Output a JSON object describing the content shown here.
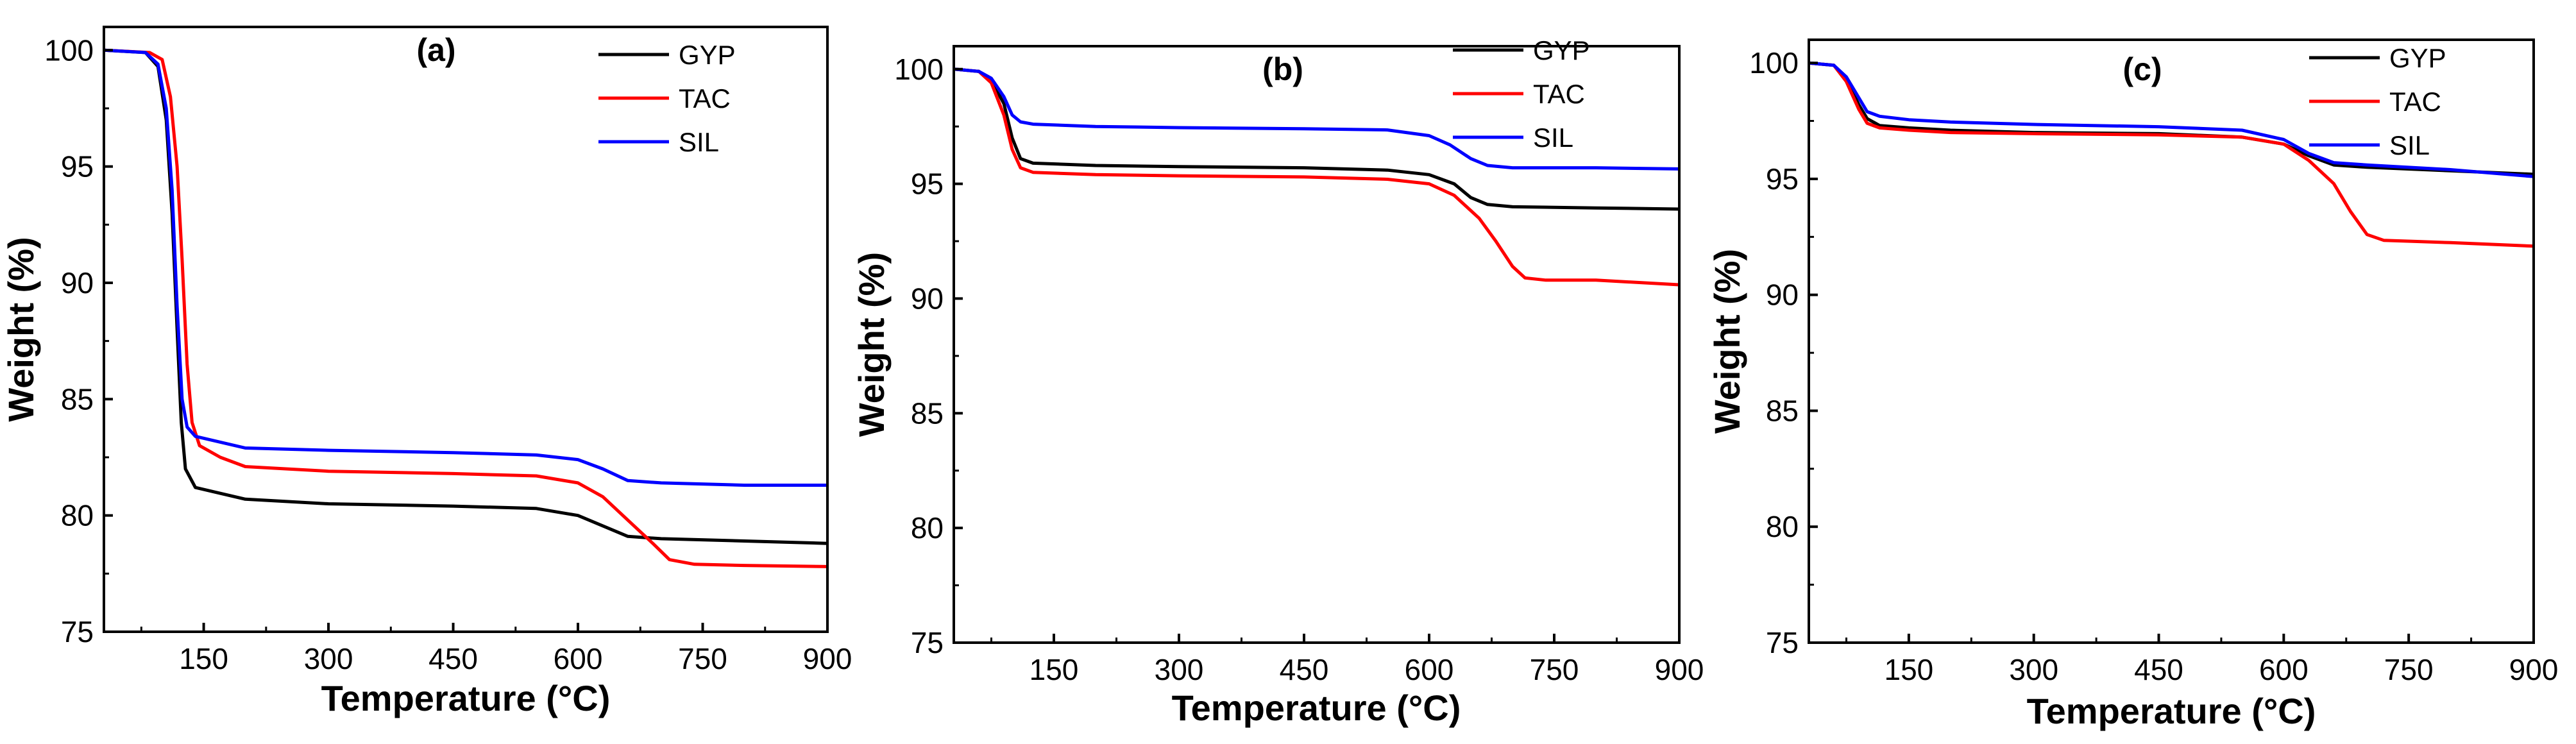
{
  "colors": {
    "GYP": "#000000",
    "TAC": "#ff0000",
    "SIL": "#0000ff"
  },
  "chart_data": [
    {
      "type": "line",
      "panel_label": "(a)",
      "xlabel": "Temperature (°C)",
      "ylabel": "Weight (%)",
      "xlim": [
        30,
        900
      ],
      "ylim": [
        75,
        101
      ],
      "xticks": [
        150,
        300,
        450,
        600,
        750,
        900
      ],
      "yticks": [
        75,
        80,
        85,
        90,
        95,
        100
      ],
      "legend_position": "top-right",
      "series": [
        {
          "name": "GYP",
          "points": [
            [
              30,
              100
            ],
            [
              80,
              99.9
            ],
            [
              95,
              99.3
            ],
            [
              105,
              97
            ],
            [
              112,
              93
            ],
            [
              118,
              88
            ],
            [
              123,
              84
            ],
            [
              128,
              82
            ],
            [
              140,
              81.2
            ],
            [
              200,
              80.7
            ],
            [
              300,
              80.5
            ],
            [
              450,
              80.4
            ],
            [
              550,
              80.3
            ],
            [
              600,
              80.0
            ],
            [
              640,
              79.4
            ],
            [
              660,
              79.1
            ],
            [
              700,
              79.0
            ],
            [
              800,
              78.9
            ],
            [
              900,
              78.8
            ]
          ]
        },
        {
          "name": "TAC",
          "points": [
            [
              30,
              100
            ],
            [
              85,
              99.9
            ],
            [
              100,
              99.6
            ],
            [
              110,
              98
            ],
            [
              118,
              95
            ],
            [
              124,
              91
            ],
            [
              130,
              86.5
            ],
            [
              136,
              84
            ],
            [
              145,
              83
            ],
            [
              170,
              82.5
            ],
            [
              200,
              82.1
            ],
            [
              300,
              81.9
            ],
            [
              450,
              81.8
            ],
            [
              550,
              81.7
            ],
            [
              600,
              81.4
            ],
            [
              630,
              80.8
            ],
            [
              660,
              79.8
            ],
            [
              690,
              78.8
            ],
            [
              710,
              78.1
            ],
            [
              740,
              77.9
            ],
            [
              800,
              77.85
            ],
            [
              900,
              77.8
            ]
          ]
        },
        {
          "name": "SIL",
          "points": [
            [
              30,
              100
            ],
            [
              80,
              99.9
            ],
            [
              95,
              99.4
            ],
            [
              105,
              97.5
            ],
            [
              112,
              94
            ],
            [
              118,
              89
            ],
            [
              124,
              85
            ],
            [
              130,
              83.8
            ],
            [
              140,
              83.4
            ],
            [
              200,
              82.9
            ],
            [
              300,
              82.8
            ],
            [
              450,
              82.7
            ],
            [
              550,
              82.6
            ],
            [
              600,
              82.4
            ],
            [
              630,
              82.0
            ],
            [
              660,
              81.5
            ],
            [
              700,
              81.4
            ],
            [
              800,
              81.3
            ],
            [
              900,
              81.3
            ]
          ]
        }
      ]
    },
    {
      "type": "line",
      "panel_label": "(b)",
      "xlabel": "Temperature (°C)",
      "ylabel": "Weight (%)",
      "xlim": [
        30,
        900
      ],
      "ylim": [
        75,
        101
      ],
      "xticks": [
        150,
        300,
        450,
        600,
        750,
        900
      ],
      "yticks": [
        75,
        80,
        85,
        90,
        95,
        100
      ],
      "legend_position": "top-right",
      "series": [
        {
          "name": "GYP",
          "points": [
            [
              30,
              100
            ],
            [
              60,
              99.9
            ],
            [
              75,
              99.5
            ],
            [
              90,
              98.5
            ],
            [
              100,
              97
            ],
            [
              110,
              96.1
            ],
            [
              125,
              95.9
            ],
            [
              200,
              95.8
            ],
            [
              300,
              95.75
            ],
            [
              450,
              95.7
            ],
            [
              550,
              95.6
            ],
            [
              600,
              95.4
            ],
            [
              630,
              95.0
            ],
            [
              650,
              94.4
            ],
            [
              670,
              94.1
            ],
            [
              700,
              94.0
            ],
            [
              800,
              93.95
            ],
            [
              900,
              93.9
            ]
          ]
        },
        {
          "name": "TAC",
          "points": [
            [
              30,
              100
            ],
            [
              60,
              99.9
            ],
            [
              75,
              99.4
            ],
            [
              90,
              98
            ],
            [
              100,
              96.5
            ],
            [
              110,
              95.7
            ],
            [
              125,
              95.5
            ],
            [
              200,
              95.4
            ],
            [
              300,
              95.35
            ],
            [
              450,
              95.3
            ],
            [
              550,
              95.2
            ],
            [
              600,
              95.0
            ],
            [
              630,
              94.5
            ],
            [
              660,
              93.5
            ],
            [
              680,
              92.5
            ],
            [
              700,
              91.4
            ],
            [
              715,
              90.9
            ],
            [
              740,
              90.8
            ],
            [
              800,
              90.8
            ],
            [
              900,
              90.6
            ]
          ]
        },
        {
          "name": "SIL",
          "points": [
            [
              30,
              100
            ],
            [
              60,
              99.9
            ],
            [
              75,
              99.6
            ],
            [
              90,
              98.8
            ],
            [
              100,
              98.0
            ],
            [
              110,
              97.7
            ],
            [
              125,
              97.6
            ],
            [
              200,
              97.5
            ],
            [
              300,
              97.45
            ],
            [
              450,
              97.4
            ],
            [
              550,
              97.35
            ],
            [
              600,
              97.1
            ],
            [
              625,
              96.7
            ],
            [
              650,
              96.1
            ],
            [
              670,
              95.8
            ],
            [
              700,
              95.7
            ],
            [
              800,
              95.7
            ],
            [
              900,
              95.65
            ]
          ]
        }
      ]
    },
    {
      "type": "line",
      "panel_label": "(c)",
      "xlabel": "Temperature (°C)",
      "ylabel": "Weight (%)",
      "xlim": [
        30,
        900
      ],
      "ylim": [
        75,
        101
      ],
      "xticks": [
        150,
        300,
        450,
        600,
        750,
        900
      ],
      "yticks": [
        75,
        80,
        85,
        90,
        95,
        100
      ],
      "legend_position": "top-right",
      "series": [
        {
          "name": "GYP",
          "points": [
            [
              30,
              100
            ],
            [
              60,
              99.9
            ],
            [
              75,
              99.3
            ],
            [
              90,
              98.2
            ],
            [
              100,
              97.6
            ],
            [
              115,
              97.3
            ],
            [
              150,
              97.2
            ],
            [
              200,
              97.1
            ],
            [
              300,
              97.0
            ],
            [
              450,
              96.95
            ],
            [
              550,
              96.8
            ],
            [
              600,
              96.5
            ],
            [
              630,
              96.0
            ],
            [
              660,
              95.6
            ],
            [
              700,
              95.5
            ],
            [
              800,
              95.35
            ],
            [
              900,
              95.2
            ]
          ]
        },
        {
          "name": "TAC",
          "points": [
            [
              30,
              100
            ],
            [
              60,
              99.9
            ],
            [
              75,
              99.2
            ],
            [
              90,
              98
            ],
            [
              100,
              97.4
            ],
            [
              115,
              97.2
            ],
            [
              150,
              97.1
            ],
            [
              200,
              97.0
            ],
            [
              300,
              96.95
            ],
            [
              450,
              96.9
            ],
            [
              550,
              96.8
            ],
            [
              600,
              96.5
            ],
            [
              630,
              95.8
            ],
            [
              660,
              94.8
            ],
            [
              680,
              93.6
            ],
            [
              700,
              92.6
            ],
            [
              720,
              92.35
            ],
            [
              760,
              92.3
            ],
            [
              800,
              92.25
            ],
            [
              900,
              92.1
            ]
          ]
        },
        {
          "name": "SIL",
          "points": [
            [
              30,
              100
            ],
            [
              60,
              99.9
            ],
            [
              75,
              99.4
            ],
            [
              90,
              98.5
            ],
            [
              100,
              97.9
            ],
            [
              115,
              97.7
            ],
            [
              150,
              97.55
            ],
            [
              200,
              97.45
            ],
            [
              300,
              97.35
            ],
            [
              450,
              97.25
            ],
            [
              550,
              97.1
            ],
            [
              600,
              96.7
            ],
            [
              630,
              96.1
            ],
            [
              660,
              95.7
            ],
            [
              700,
              95.6
            ],
            [
              800,
              95.4
            ],
            [
              900,
              95.1
            ]
          ]
        }
      ]
    }
  ]
}
